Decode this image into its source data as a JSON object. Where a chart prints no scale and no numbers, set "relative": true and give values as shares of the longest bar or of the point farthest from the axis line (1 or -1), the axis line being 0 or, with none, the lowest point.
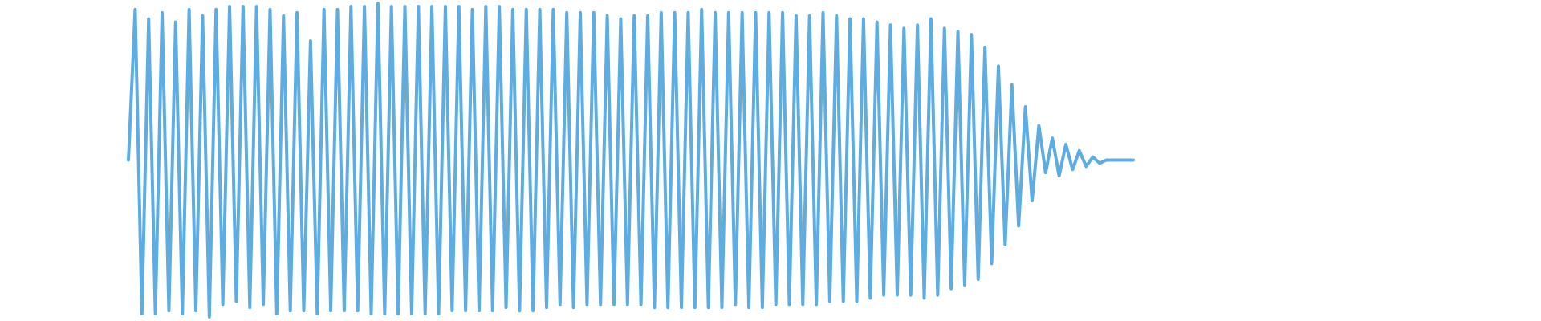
{
  "chart_data": {
    "type": "line",
    "relative": true,
    "color": "#5dade2",
    "categories": [
      null,
      null,
      null,
      null,
      null,
      null,
      null,
      null,
      null,
      null,
      null,
      null,
      null,
      null,
      null,
      null,
      null,
      null,
      null,
      null,
      null,
      null,
      null,
      null,
      null,
      null,
      null,
      null,
      null,
      null,
      null,
      null,
      null,
      null,
      null,
      null,
      null,
      null,
      null,
      null,
      null,
      null,
      null,
      null,
      null,
      null,
      null,
      null,
      null,
      null,
      null,
      null,
      null,
      null,
      null,
      null,
      null,
      null,
      null,
      null,
      null,
      null,
      null,
      null,
      null,
      null,
      null,
      null,
      null,
      null,
      null,
      null,
      null,
      null,
      null,
      null,
      null,
      null,
      null,
      null,
      null,
      null,
      null,
      null,
      null,
      null,
      null,
      null,
      null,
      null,
      null,
      null,
      null,
      null,
      null,
      null,
      null,
      null,
      null,
      null,
      null,
      null,
      null,
      null,
      null,
      null,
      null,
      null,
      null,
      null,
      null,
      null,
      null,
      null,
      null,
      null,
      null,
      null,
      null,
      null,
      null,
      null,
      null,
      null,
      null,
      null,
      null,
      null,
      null,
      null,
      null,
      null,
      null,
      null,
      null,
      null,
      null,
      null,
      null,
      null,
      null,
      null,
      null,
      null,
      null,
      null,
      null,
      null,
      null,
      null
    ],
    "values": [
      0.5,
      0.98,
      0.01,
      0.95,
      0.01,
      0.97,
      0.02,
      0.94,
      0.01,
      0.98,
      0.02,
      0.96,
      0.0,
      0.98,
      0.04,
      0.99,
      0.05,
      0.99,
      0.03,
      0.99,
      0.04,
      0.98,
      0.01,
      0.96,
      0.02,
      0.97,
      0.02,
      0.88,
      0.01,
      0.98,
      0.02,
      0.98,
      0.02,
      0.99,
      0.02,
      0.99,
      0.01,
      1.0,
      0.01,
      0.99,
      0.01,
      0.99,
      0.01,
      0.99,
      0.01,
      0.99,
      0.01,
      0.99,
      0.02,
      0.99,
      0.02,
      0.98,
      0.02,
      0.99,
      0.02,
      0.99,
      0.03,
      0.98,
      0.02,
      0.98,
      0.02,
      0.98,
      0.03,
      0.98,
      0.04,
      0.97,
      0.03,
      0.97,
      0.04,
      0.97,
      0.04,
      0.96,
      0.04,
      0.95,
      0.04,
      0.96,
      0.04,
      0.96,
      0.03,
      0.97,
      0.03,
      0.97,
      0.03,
      0.97,
      0.03,
      0.98,
      0.03,
      0.97,
      0.03,
      0.97,
      0.04,
      0.97,
      0.03,
      0.97,
      0.03,
      0.97,
      0.04,
      0.97,
      0.04,
      0.96,
      0.04,
      0.96,
      0.04,
      0.97,
      0.05,
      0.96,
      0.05,
      0.95,
      0.05,
      0.95,
      0.06,
      0.94,
      0.07,
      0.93,
      0.07,
      0.92,
      0.07,
      0.93,
      0.06,
      0.95,
      0.07,
      0.92,
      0.09,
      0.91,
      0.1,
      0.9,
      0.12,
      0.86,
      0.17,
      0.8,
      0.23,
      0.74,
      0.29,
      0.67,
      0.37,
      0.61,
      0.46,
      0.57,
      0.45,
      0.55,
      0.47,
      0.53,
      0.48,
      0.51,
      0.49,
      0.5,
      0.5,
      0.5,
      0.5,
      0.5
    ]
  }
}
